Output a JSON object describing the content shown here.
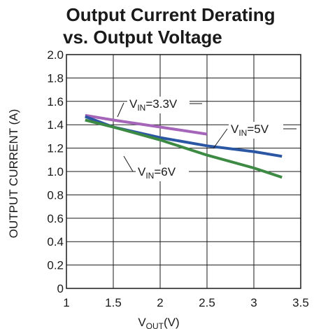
{
  "chart_data": {
    "type": "line",
    "title_line1": "Output Current Derating",
    "title_line2": "vs. Output Voltage",
    "xlabel_main": "V",
    "xlabel_sub": "OUT",
    "xlabel_unit": "(V)",
    "ylabel": "OUTPUT CURRENT (A)",
    "xlim": [
      1,
      3.5
    ],
    "ylim": [
      0,
      2.0
    ],
    "x_ticks": [
      "1",
      "1.5",
      "2",
      "2.5",
      "3",
      "3.5"
    ],
    "y_ticks": [
      "0",
      "0.2",
      "0.4",
      "0.6",
      "0.8",
      "1.0",
      "1.2",
      "1.4",
      "1.6",
      "1.8",
      "2.0"
    ],
    "grid": true,
    "series": [
      {
        "name_main": "V",
        "name_sub": "IN",
        "name_value": "=3.3V",
        "color": "#a565b8",
        "x": [
          1.2,
          1.5,
          2.0,
          2.5
        ],
        "y": [
          1.48,
          1.44,
          1.38,
          1.32
        ]
      },
      {
        "name_main": "V",
        "name_sub": "IN",
        "name_value": "=5V",
        "color": "#2b56a3",
        "x": [
          1.2,
          1.5,
          2.0,
          2.5,
          3.0,
          3.3
        ],
        "y": [
          1.47,
          1.38,
          1.29,
          1.22,
          1.17,
          1.13
        ]
      },
      {
        "name_main": "V",
        "name_sub": "IN",
        "name_value": "=6V",
        "color": "#3d8a44",
        "x": [
          1.2,
          1.5,
          2.0,
          2.5,
          3.0,
          3.3
        ],
        "y": [
          1.44,
          1.38,
          1.27,
          1.14,
          1.03,
          0.95
        ]
      }
    ]
  }
}
